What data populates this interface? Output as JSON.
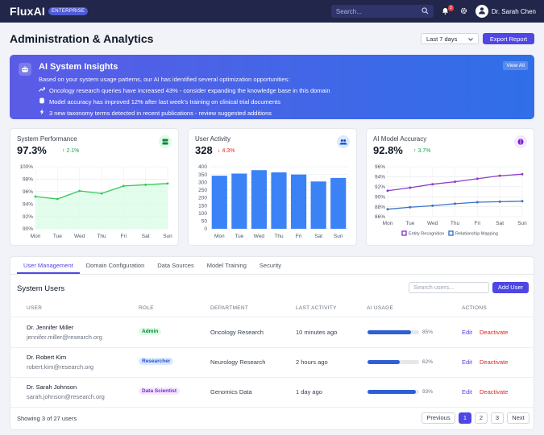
{
  "app": {
    "name": "FluxAI",
    "edition": "ENTERPRISE",
    "search_placeholder": "Search...",
    "notification_count": "3",
    "user_name": "Dr. Sarah Chen"
  },
  "header": {
    "title": "Administration & Analytics",
    "period": "Last 7 days",
    "export_label": "Export Report"
  },
  "insights": {
    "title": "AI System Insights",
    "description": "Based on your system usage patterns, our AI has identified several optimization opportunities:",
    "items": [
      {
        "icon": "trend-up-icon",
        "text": "Oncology research queries have increased 43% - consider expanding the knowledge base in this domain"
      },
      {
        "icon": "database-icon",
        "text": "Model accuracy has improved 12% after last week's training on clinical trial documents"
      },
      {
        "icon": "bolt-icon",
        "text": "3 new taxonomy terms detected in recent publications - review suggested additions"
      }
    ],
    "view_all": "View All"
  },
  "cards": {
    "performance": {
      "label": "System Performance",
      "value": "97.3%",
      "delta": "2.1%",
      "delta_dir": "up"
    },
    "activity": {
      "label": "User Activity",
      "value": "328",
      "delta": "4.3%",
      "delta_dir": "down"
    },
    "accuracy": {
      "label": "AI Model Accuracy",
      "value": "92.8%",
      "delta": "3.7%",
      "delta_dir": "up"
    }
  },
  "chart_data": [
    {
      "type": "area",
      "x": [
        "Mon",
        "Tue",
        "Wed",
        "Thu",
        "Fri",
        "Sat",
        "Sun"
      ],
      "series": [
        {
          "values": [
            95.2,
            94.8,
            96.1,
            95.7,
            96.9,
            97.1,
            97.3
          ]
        }
      ],
      "yticks": [
        "100%",
        "98%",
        "96%",
        "94%",
        "92%",
        "90%"
      ],
      "ylim": [
        90,
        100
      ],
      "color": "#34c759"
    },
    {
      "type": "bar",
      "categories": [
        "Mon",
        "Tue",
        "Wed",
        "Thu",
        "Fri",
        "Sat",
        "Sun"
      ],
      "values": [
        342,
        356,
        378,
        364,
        350,
        305,
        328
      ],
      "yticks": [
        "400",
        "350",
        "300",
        "250",
        "200",
        "150",
        "100",
        "50",
        "0"
      ],
      "ylim": [
        0,
        400
      ],
      "color": "#3b82f6"
    },
    {
      "type": "line",
      "x": [
        "Mon",
        "Tue",
        "Wed",
        "Thu",
        "Fri",
        "Sat",
        "Sun"
      ],
      "series": [
        {
          "name": "Entity Recognition",
          "values": [
            91.2,
            91.8,
            92.5,
            93.0,
            93.6,
            94.2,
            94.5
          ],
          "color": "#8b3fc7"
        },
        {
          "name": "Relationship Mapping",
          "values": [
            87.5,
            87.9,
            88.2,
            88.6,
            88.9,
            89.0,
            89.1
          ],
          "color": "#3a74c7"
        }
      ],
      "yticks": [
        "96%",
        "94%",
        "92%",
        "90%",
        "88%",
        "86%"
      ],
      "ylim": [
        86,
        96
      ],
      "legend": "bottom"
    }
  ],
  "tabs": [
    "User Management",
    "Domain Configuration",
    "Data Sources",
    "Model Training",
    "Security"
  ],
  "users": {
    "section_title": "System Users",
    "search_placeholder": "Search users...",
    "add_label": "Add User",
    "columns": [
      "USER",
      "ROLE",
      "DEPARTMENT",
      "LAST ACTIVITY",
      "AI USAGE",
      "ACTIONS"
    ],
    "rows": [
      {
        "name": "Dr. Jennifer Miller",
        "email": "jennifer.miller@research.org",
        "role": "Admin",
        "role_color": "#15803d",
        "role_bg": "#dcfce7",
        "department": "Oncology Research",
        "last": "10 minutes ago",
        "usage": 0.85,
        "usage_label": "85%",
        "edit": "Edit",
        "deactivate": "Deactivate"
      },
      {
        "name": "Dr. Robert Kim",
        "email": "robert.kim@research.org",
        "role": "Researcher",
        "role_color": "#1d4ed8",
        "role_bg": "#dbeafe",
        "department": "Neurology Research",
        "last": "2 hours ago",
        "usage": 0.62,
        "usage_label": "62%",
        "edit": "Edit",
        "deactivate": "Deactivate"
      },
      {
        "name": "Dr. Sarah Johnson",
        "email": "sarah.johnson@research.org",
        "role": "Data Scientist",
        "role_color": "#7e22ce",
        "role_bg": "#f3e8ff",
        "department": "Genomics Data",
        "last": "1 day ago",
        "usage": 0.93,
        "usage_label": "93%",
        "edit": "Edit",
        "deactivate": "Deactivate"
      }
    ],
    "footer": "Showing 3 of 27 users",
    "pagination": {
      "prev": "Previous",
      "pages": [
        "1",
        "2",
        "3"
      ],
      "next": "Next"
    }
  }
}
